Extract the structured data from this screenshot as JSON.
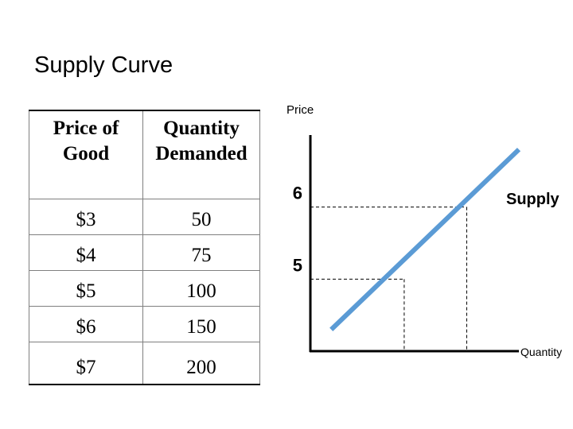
{
  "title": "Supply Curve",
  "table": {
    "headers": [
      "Price of Good",
      "Quantity Demanded"
    ],
    "header_lines": [
      [
        "Price of",
        "Good"
      ],
      [
        "Quantity",
        "Demanded"
      ]
    ],
    "rows": [
      {
        "price": "$3",
        "quantity": "50"
      },
      {
        "price": "$4",
        "quantity": "75"
      },
      {
        "price": "$5",
        "quantity": "100"
      },
      {
        "price": "$6",
        "quantity": "150"
      },
      {
        "price": "$7",
        "quantity": "200"
      }
    ]
  },
  "chart_data": {
    "type": "line",
    "ylabel": "Price",
    "xlabel": "Quantity",
    "series": [
      {
        "name": "Supply",
        "color": "#5b9bd5",
        "x": [
          0.1,
          1.0
        ],
        "y": [
          4.3,
          6.8
        ]
      }
    ],
    "reference_points": [
      {
        "y": 5,
        "y_label": "5",
        "x": 0.45
      },
      {
        "y": 6,
        "y_label": "6",
        "x": 0.75
      }
    ],
    "axis_color": "#000000",
    "guide_style": "dashed",
    "xlim": [
      0,
      1
    ],
    "ylim": [
      4,
      7
    ],
    "grid": false,
    "legend": "none"
  }
}
